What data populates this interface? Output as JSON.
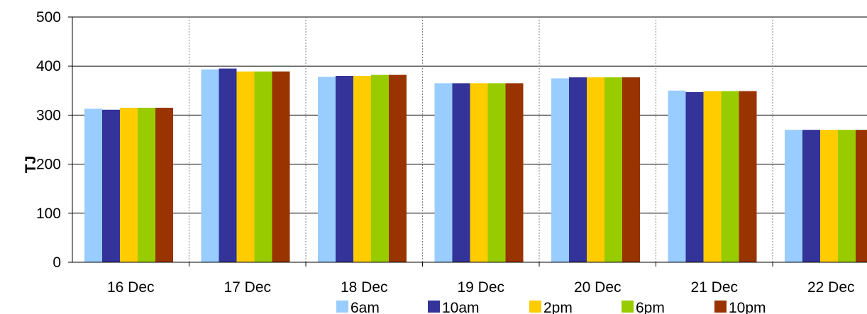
{
  "chart_data": {
    "type": "bar",
    "title": "",
    "xlabel": "",
    "ylabel": "TJ",
    "ylim": [
      0,
      500
    ],
    "yticks": [
      0,
      100,
      200,
      300,
      400,
      500
    ],
    "categories": [
      "16 Dec",
      "17 Dec",
      "18 Dec",
      "19 Dec",
      "20 Dec",
      "21 Dec",
      "22 Dec"
    ],
    "series": [
      {
        "name": "6am",
        "color": "#99ccff",
        "values": [
          313,
          393,
          378,
          365,
          375,
          350,
          270
        ]
      },
      {
        "name": "10am",
        "color": "#333399",
        "values": [
          311,
          395,
          380,
          365,
          377,
          347,
          270
        ]
      },
      {
        "name": "2pm",
        "color": "#ffcc00",
        "values": [
          315,
          389,
          380,
          365,
          377,
          349,
          270
        ]
      },
      {
        "name": "6pm",
        "color": "#99cc00",
        "values": [
          315,
          389,
          382,
          365,
          377,
          349,
          270
        ]
      },
      {
        "name": "10pm",
        "color": "#993300",
        "values": [
          315,
          389,
          382,
          365,
          377,
          349,
          270
        ]
      }
    ],
    "grid": true,
    "legend_position": "bottom"
  }
}
